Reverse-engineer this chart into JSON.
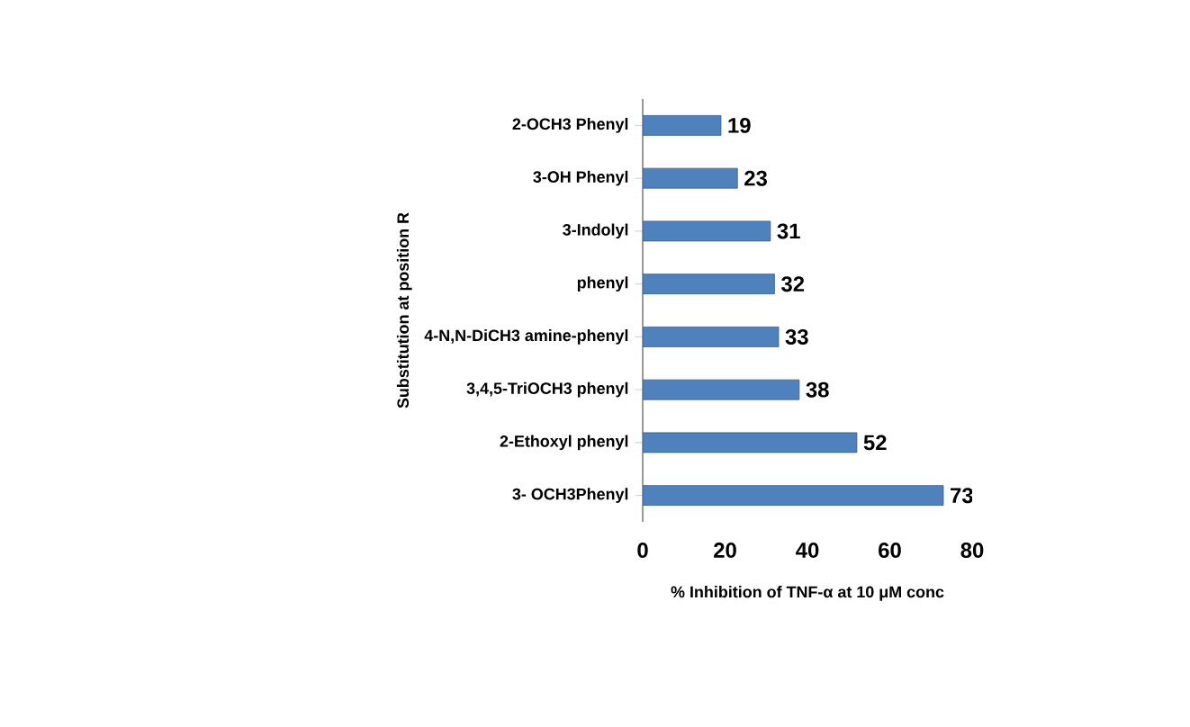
{
  "chart_data": {
    "type": "bar",
    "orientation": "horizontal",
    "categories": [
      "2-OCH3 Phenyl",
      "3-OH Phenyl",
      "3-Indolyl",
      "phenyl",
      "4-N,N-DiCH3 amine-phenyl",
      "3,4,5-TriOCH3 phenyl",
      "2-Ethoxyl phenyl",
      "3- OCH3Phenyl"
    ],
    "values": [
      19,
      23,
      31,
      32,
      33,
      38,
      52,
      73
    ],
    "color": "#4f81bd",
    "data_labels": true,
    "xlim": [
      0,
      80
    ],
    "xticks": [
      0,
      20,
      40,
      60,
      80
    ],
    "xlabel": "% Inhibition of TNF-α at 10 μM conc",
    "ylabel": "Substitution at position R"
  }
}
